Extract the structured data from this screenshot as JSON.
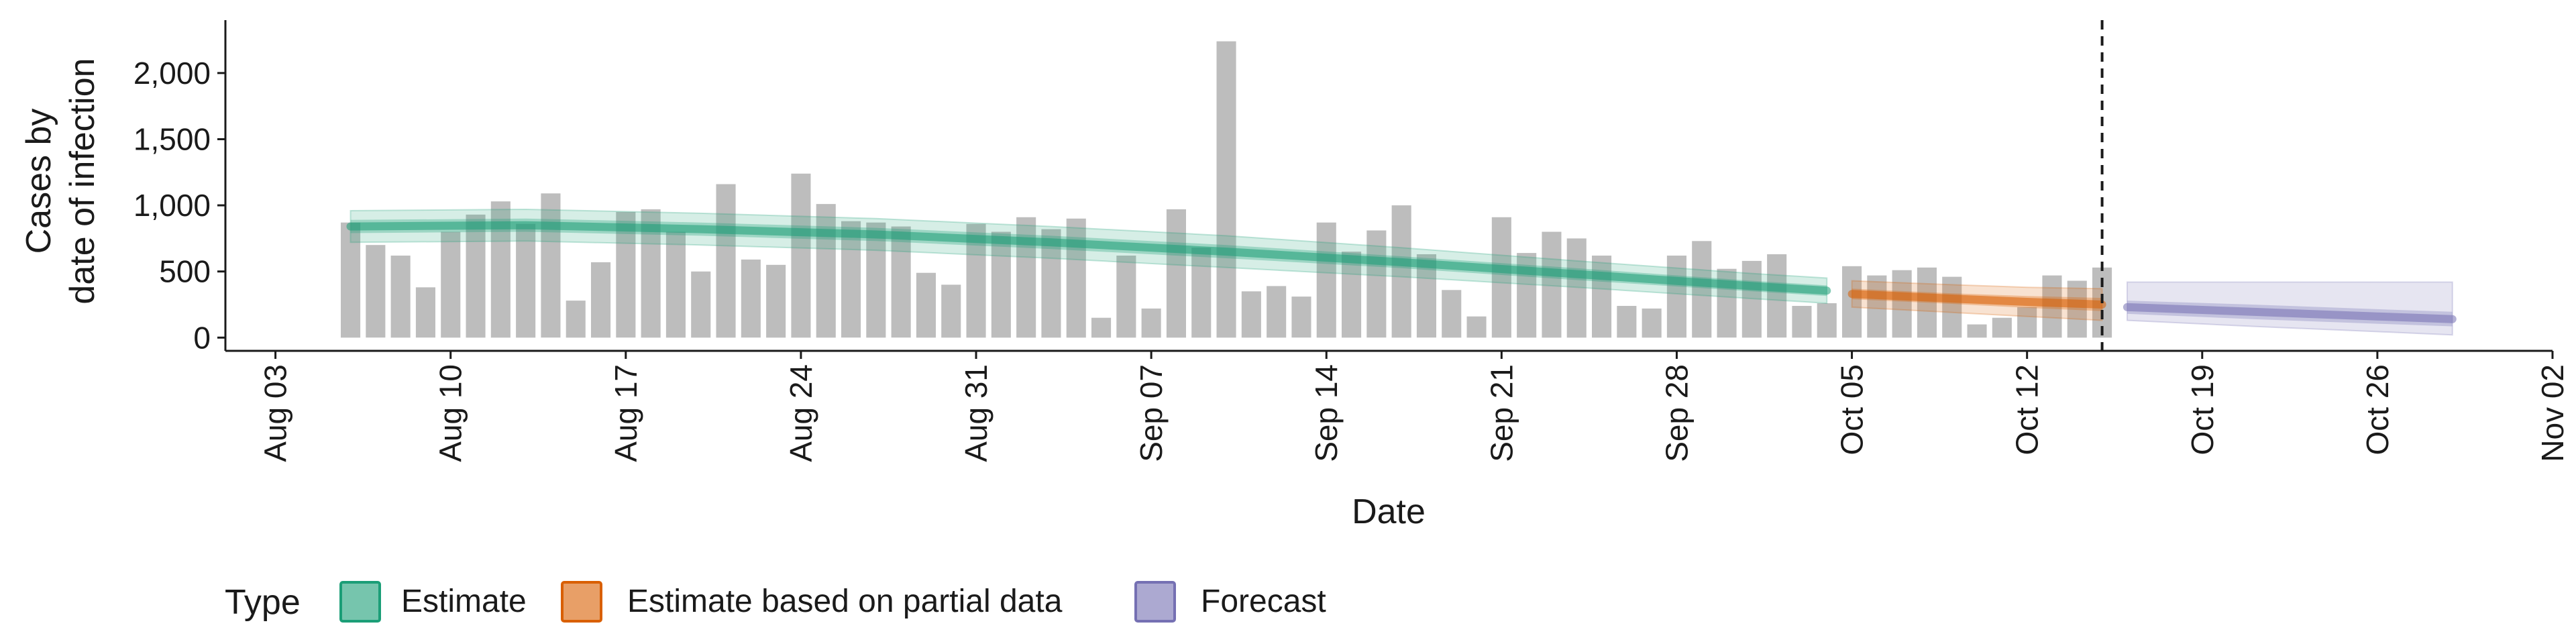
{
  "chart_data": {
    "type": "bar",
    "xlabel": "Date",
    "ylabel_lines": [
      "Cases by",
      "date of infection"
    ],
    "ylim": [
      -100,
      2400
    ],
    "yticks": [
      0,
      500,
      1000,
      1500,
      2000
    ],
    "ytick_labels": [
      "0",
      "500",
      "1,000",
      "1,500",
      "2,000"
    ],
    "xticks": [
      {
        "date": "2020-08-03",
        "label": "Aug 03"
      },
      {
        "date": "2020-08-10",
        "label": "Aug 10"
      },
      {
        "date": "2020-08-17",
        "label": "Aug 17"
      },
      {
        "date": "2020-08-24",
        "label": "Aug 24"
      },
      {
        "date": "2020-08-31",
        "label": "Aug 31"
      },
      {
        "date": "2020-09-07",
        "label": "Sep 07"
      },
      {
        "date": "2020-09-14",
        "label": "Sep 14"
      },
      {
        "date": "2020-09-21",
        "label": "Sep 21"
      },
      {
        "date": "2020-09-28",
        "label": "Sep 28"
      },
      {
        "date": "2020-10-05",
        "label": "Oct 05"
      },
      {
        "date": "2020-10-12",
        "label": "Oct 12"
      },
      {
        "date": "2020-10-19",
        "label": "Oct 19"
      },
      {
        "date": "2020-10-26",
        "label": "Oct 26"
      },
      {
        "date": "2020-11-02",
        "label": "Nov 02"
      }
    ],
    "xlim": [
      "2020-08-01",
      "2020-11-02"
    ],
    "forecast_start": "2020-10-15",
    "bars": {
      "start_date": "2020-08-06",
      "color": "#bdbdbd",
      "values": [
        870,
        700,
        620,
        380,
        800,
        930,
        1030,
        860,
        1090,
        280,
        570,
        950,
        970,
        800,
        500,
        1160,
        590,
        550,
        1240,
        1010,
        880,
        870,
        840,
        490,
        400,
        860,
        800,
        910,
        820,
        900,
        150,
        620,
        220,
        970,
        680,
        2240,
        350,
        390,
        310,
        870,
        650,
        810,
        1000,
        630,
        360,
        160,
        910,
        640,
        800,
        750,
        620,
        240,
        220,
        620,
        730,
        520,
        580,
        630,
        240,
        260,
        540,
        470,
        510,
        530,
        460,
        100,
        150,
        230,
        470,
        430,
        530
      ]
    },
    "series": [
      {
        "name": "Estimate",
        "color": "#1b9e77",
        "dates": [
          "2020-08-06",
          "2020-08-13",
          "2020-08-20",
          "2020-08-27",
          "2020-09-03",
          "2020-09-10",
          "2020-09-17",
          "2020-09-24",
          "2020-10-01",
          "2020-10-04"
        ],
        "median": [
          840,
          850,
          820,
          780,
          720,
          650,
          570,
          480,
          390,
          355
        ],
        "inner_lower": [
          790,
          800,
          770,
          730,
          670,
          600,
          525,
          435,
          350,
          315
        ],
        "inner_upper": [
          890,
          900,
          870,
          830,
          770,
          700,
          615,
          525,
          430,
          395
        ],
        "outer_lower": [
          720,
          730,
          700,
          660,
          600,
          530,
          460,
          380,
          295,
          260
        ],
        "outer_upper": [
          960,
          970,
          940,
          900,
          840,
          770,
          680,
          580,
          485,
          450
        ]
      },
      {
        "name": "Estimate based on partial data",
        "color": "#d95f02",
        "dates": [
          "2020-10-05",
          "2020-10-09",
          "2020-10-12",
          "2020-10-15"
        ],
        "median": [
          330,
          295,
          270,
          250
        ],
        "inner_lower": [
          290,
          255,
          225,
          200
        ],
        "inner_upper": [
          370,
          335,
          315,
          300
        ],
        "outer_lower": [
          230,
          190,
          160,
          130
        ],
        "outer_upper": [
          430,
          400,
          380,
          370
        ]
      },
      {
        "name": "Forecast",
        "color": "#7570b3",
        "dates": [
          "2020-10-16",
          "2020-10-21",
          "2020-10-26",
          "2020-10-29"
        ],
        "median": [
          230,
          195,
          160,
          140
        ],
        "inner_lower": [
          180,
          140,
          105,
          85
        ],
        "inner_upper": [
          280,
          250,
          215,
          195
        ],
        "outer_lower": [
          130,
          85,
          45,
          20
        ],
        "outer_upper": [
          420,
          420,
          420,
          420
        ]
      }
    ],
    "legend": {
      "title": "Type",
      "position": "bottom",
      "items": [
        {
          "label": "Estimate",
          "color": "#1b9e77"
        },
        {
          "label": "Estimate based on partial data",
          "color": "#d95f02"
        },
        {
          "label": "Forecast",
          "color": "#7570b3"
        }
      ]
    },
    "grid": false
  }
}
